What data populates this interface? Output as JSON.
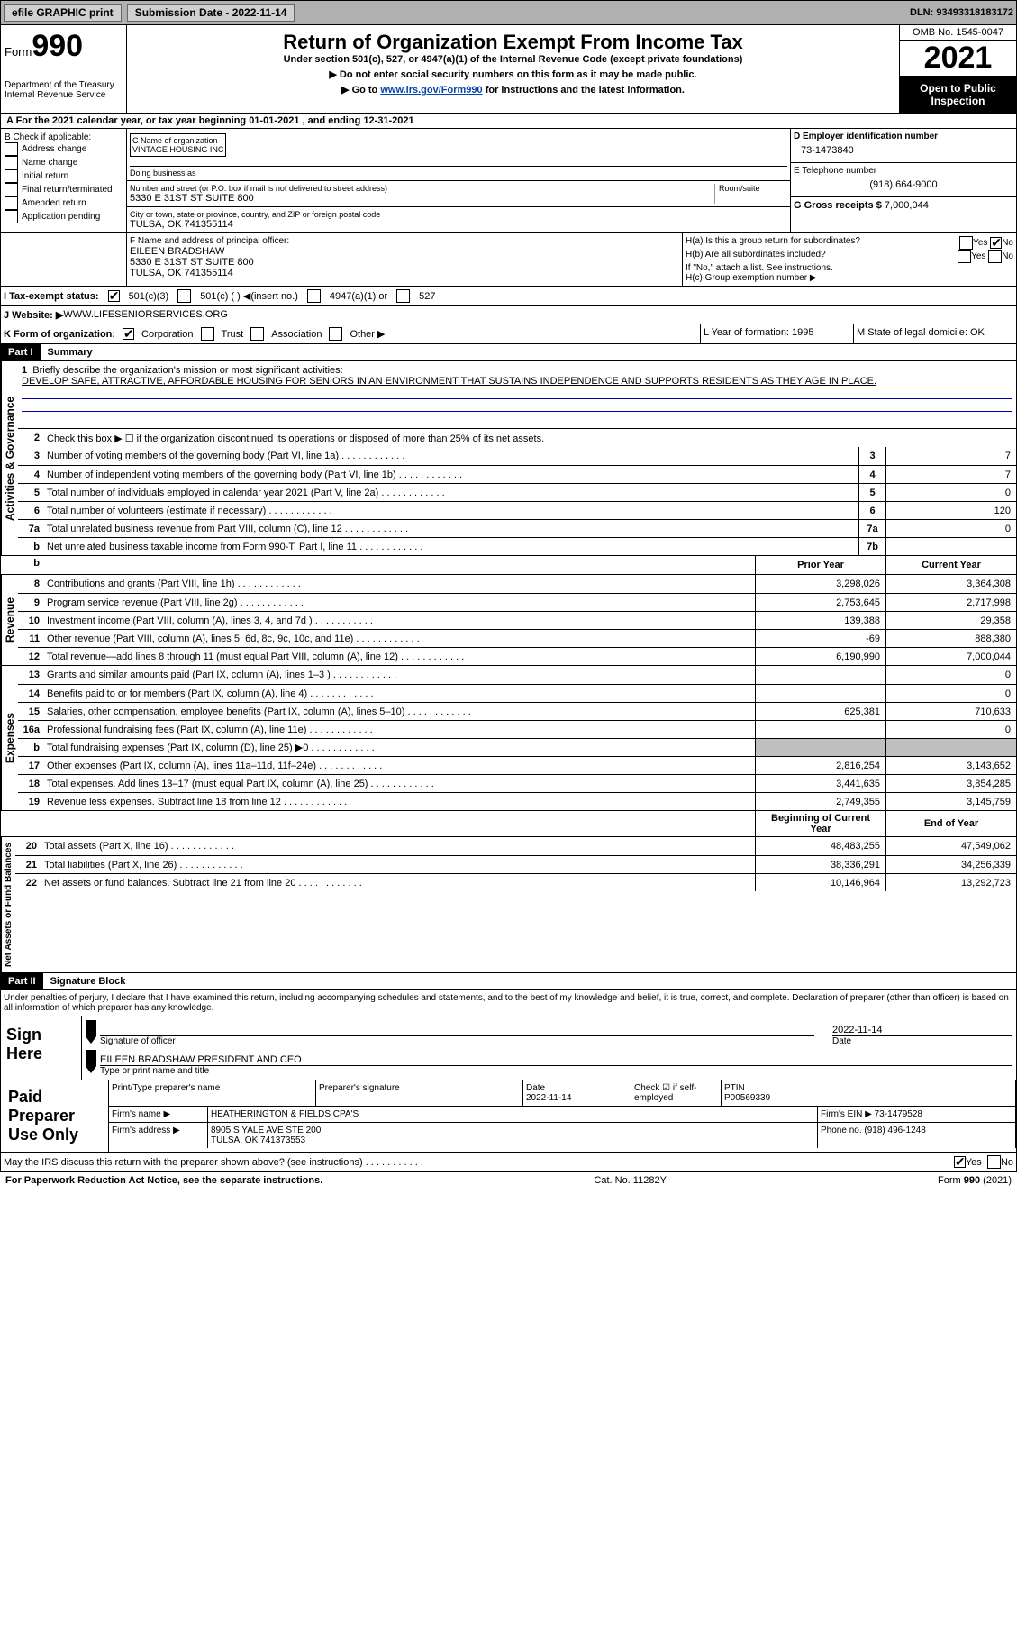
{
  "topbar": {
    "efile": "efile GRAPHIC print",
    "subdate_lbl": "Submission Date - 2022-11-14",
    "dln": "DLN: 93493318183172"
  },
  "header": {
    "form_prefix": "Form",
    "form_no": "990",
    "dept": "Department of the Treasury\nInternal Revenue Service",
    "title": "Return of Organization Exempt From Income Tax",
    "sub1": "Under section 501(c), 527, or 4947(a)(1) of the Internal Revenue Code (except private foundations)",
    "sub2": "▶ Do not enter social security numbers on this form as it may be made public.",
    "sub3_pre": "▶ Go to ",
    "sub3_link": "www.irs.gov/Form990",
    "sub3_post": " for instructions and the latest information.",
    "omb": "OMB No. 1545-0047",
    "year": "2021",
    "openpub": "Open to Public Inspection"
  },
  "rowA": {
    "text": "A For the 2021 calendar year, or tax year beginning 01-01-2021   , and ending 12-31-2021"
  },
  "sectionB": {
    "label": "B Check if applicable:",
    "opts": [
      "Address change",
      "Name change",
      "Initial return",
      "Final return/terminated",
      "Amended return",
      "Application pending"
    ]
  },
  "sectionC": {
    "name_lbl": "C Name of organization",
    "name": "VINTAGE HOUSING INC",
    "dba_lbl": "Doing business as",
    "addr_lbl": "Number and street (or P.O. box if mail is not delivered to street address)",
    "room_lbl": "Room/suite",
    "addr": "5330 E 31ST ST SUITE 800",
    "city_lbl": "City or town, state or province, country, and ZIP or foreign postal code",
    "city": "TULSA, OK  741355114"
  },
  "sectionD": {
    "lbl": "D Employer identification number",
    "val": "73-1473840"
  },
  "sectionE": {
    "lbl": "E Telephone number",
    "val": "(918) 664-9000"
  },
  "sectionG": {
    "lbl": "G Gross receipts $",
    "val": "7,000,044"
  },
  "sectionF": {
    "lbl": "F  Name and address of principal officer:",
    "name": "EILEEN BRADSHAW",
    "addr1": "5330 E 31ST ST SUITE 800",
    "addr2": "TULSA, OK  741355114"
  },
  "sectionH": {
    "a": "H(a)  Is this a group return for subordinates?",
    "a_no": "No",
    "a_yes": "Yes",
    "b": "H(b)  Are all subordinates included?",
    "b_yes": "Yes",
    "b_no": "No",
    "b_note": "If \"No,\" attach a list. See instructions.",
    "c": "H(c)  Group exemption number ▶"
  },
  "sectionI": {
    "lbl": "I    Tax-exempt status:",
    "opt1": "501(c)(3)",
    "opt2": "501(c) (  ) ◀(insert no.)",
    "opt3": "4947(a)(1) or",
    "opt4": "527"
  },
  "sectionJ": {
    "lbl": "J   Website: ▶",
    "val": "  WWW.LIFESENIORSERVICES.ORG"
  },
  "sectionK": {
    "lbl": "K Form of organization:",
    "opts": [
      "Corporation",
      "Trust",
      "Association",
      "Other ▶"
    ]
  },
  "sectionL": {
    "lbl": "L Year of formation: 1995"
  },
  "sectionM": {
    "lbl": "M State of legal domicile: OK"
  },
  "part1": {
    "label": "Part I",
    "title": "Summary"
  },
  "summary": {
    "line1_lbl": "Briefly describe the organization's mission or most significant activities:",
    "mission": "DEVELOP SAFE, ATTRACTIVE, AFFORDABLE HOUSING FOR SENIORS IN AN ENVIRONMENT THAT SUSTAINS INDEPENDENCE AND SUPPORTS RESIDENTS AS THEY AGE IN PLACE.",
    "line2": "Check this box ▶ ☐  if the organization discontinued its operations or disposed of more than 25% of its net assets.",
    "rows": [
      {
        "n": "3",
        "d": "Number of voting members of the governing body (Part VI, line 1a)",
        "b": "3",
        "v": "7"
      },
      {
        "n": "4",
        "d": "Number of independent voting members of the governing body (Part VI, line 1b)",
        "b": "4",
        "v": "7"
      },
      {
        "n": "5",
        "d": "Total number of individuals employed in calendar year 2021 (Part V, line 2a)",
        "b": "5",
        "v": "0"
      },
      {
        "n": "6",
        "d": "Total number of volunteers (estimate if necessary)",
        "b": "6",
        "v": "120"
      },
      {
        "n": "7a",
        "d": "Total unrelated business revenue from Part VIII, column (C), line 12",
        "b": "7a",
        "v": "0"
      },
      {
        "n": "b",
        "d": "Net unrelated business taxable income from Form 990-T, Part I, line 11",
        "b": "7b",
        "v": ""
      }
    ],
    "prior_lbl": "Prior Year",
    "curr_lbl": "Current Year"
  },
  "revenue": {
    "tab": "Revenue",
    "rows": [
      {
        "n": "8",
        "d": "Contributions and grants (Part VIII, line 1h)",
        "p": "3,298,026",
        "c": "3,364,308"
      },
      {
        "n": "9",
        "d": "Program service revenue (Part VIII, line 2g)",
        "p": "2,753,645",
        "c": "2,717,998"
      },
      {
        "n": "10",
        "d": "Investment income (Part VIII, column (A), lines 3, 4, and 7d )",
        "p": "139,388",
        "c": "29,358"
      },
      {
        "n": "11",
        "d": "Other revenue (Part VIII, column (A), lines 5, 6d, 8c, 9c, 10c, and 11e)",
        "p": "-69",
        "c": "888,380"
      },
      {
        "n": "12",
        "d": "Total revenue—add lines 8 through 11 (must equal Part VIII, column (A), line 12)",
        "p": "6,190,990",
        "c": "7,000,044"
      }
    ]
  },
  "expenses": {
    "tab": "Expenses",
    "rows": [
      {
        "n": "13",
        "d": "Grants and similar amounts paid (Part IX, column (A), lines 1–3 )",
        "p": "",
        "c": "0"
      },
      {
        "n": "14",
        "d": "Benefits paid to or for members (Part IX, column (A), line 4)",
        "p": "",
        "c": "0"
      },
      {
        "n": "15",
        "d": "Salaries, other compensation, employee benefits (Part IX, column (A), lines 5–10)",
        "p": "625,381",
        "c": "710,633"
      },
      {
        "n": "16a",
        "d": "Professional fundraising fees (Part IX, column (A), line 11e)",
        "p": "",
        "c": "0"
      },
      {
        "n": "b",
        "d": "Total fundraising expenses (Part IX, column (D), line 25) ▶0",
        "p": "",
        "c": "",
        "shade": true
      },
      {
        "n": "17",
        "d": "Other expenses (Part IX, column (A), lines 11a–11d, 11f–24e)",
        "p": "2,816,254",
        "c": "3,143,652"
      },
      {
        "n": "18",
        "d": "Total expenses. Add lines 13–17 (must equal Part IX, column (A), line 25)",
        "p": "3,441,635",
        "c": "3,854,285"
      },
      {
        "n": "19",
        "d": "Revenue less expenses. Subtract line 18 from line 12",
        "p": "2,749,355",
        "c": "3,145,759"
      }
    ]
  },
  "netassets": {
    "tab": "Net Assets or Fund Balances",
    "begin_lbl": "Beginning of Current Year",
    "end_lbl": "End of Year",
    "rows": [
      {
        "n": "20",
        "d": "Total assets (Part X, line 16)",
        "p": "48,483,255",
        "c": "47,549,062"
      },
      {
        "n": "21",
        "d": "Total liabilities (Part X, line 26)",
        "p": "38,336,291",
        "c": "34,256,339"
      },
      {
        "n": "22",
        "d": "Net assets or fund balances. Subtract line 21 from line 20",
        "p": "10,146,964",
        "c": "13,292,723"
      }
    ]
  },
  "part2": {
    "label": "Part II",
    "title": "Signature Block"
  },
  "penalty": "Under penalties of perjury, I declare that I have examined this return, including accompanying schedules and statements, and to the best of my knowledge and belief, it is true, correct, and complete. Declaration of preparer (other than officer) is based on all information of which preparer has any knowledge.",
  "sign": {
    "label": "Sign Here",
    "sig_lbl": "Signature of officer",
    "date_lbl": "Date",
    "date": "2022-11-14",
    "name": "EILEEN BRADSHAW PRESIDENT AND CEO",
    "name_lbl": "Type or print name and title"
  },
  "paid": {
    "label": "Paid Preparer Use Only",
    "h1": "Print/Type preparer's name",
    "h2": "Preparer's signature",
    "h3": "Date",
    "h3v": "2022-11-14",
    "h4": "Check ☑ if self-employed",
    "h5": "PTIN",
    "ptin": "P00569339",
    "firm_lbl": "Firm's name    ▶",
    "firm": "HEATHERINGTON & FIELDS CPA'S",
    "ein_lbl": "Firm's EIN ▶",
    "ein": "73-1479528",
    "addr_lbl": "Firm's address ▶",
    "addr1": "8905 S YALE AVE STE 200",
    "addr2": "TULSA, OK  741373553",
    "phone_lbl": "Phone no.",
    "phone": "(918) 496-1248"
  },
  "discuss": {
    "q": "May the IRS discuss this return with the preparer shown above? (see instructions)",
    "yes": "Yes",
    "no": "No"
  },
  "footer": {
    "l": "For Paperwork Reduction Act Notice, see the separate instructions.",
    "c": "Cat. No. 11282Y",
    "r": "Form 990 (2021)"
  }
}
